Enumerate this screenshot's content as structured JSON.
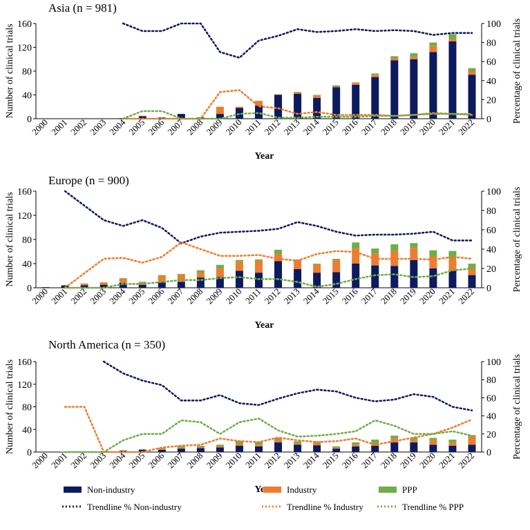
{
  "years": [
    "2000",
    "2001",
    "2002",
    "2003",
    "2004",
    "2005",
    "2006",
    "2007",
    "2008",
    "2009",
    "2010",
    "2011",
    "2012",
    "2013",
    "2014",
    "2015",
    "2016",
    "2017",
    "2018",
    "2019",
    "2020",
    "2021",
    "2022"
  ],
  "colors": {
    "non_industry": "#0d1a5e",
    "industry": "#ed7d31",
    "ppp": "#70ad47"
  },
  "legend": {
    "non_industry": "Non-industry",
    "industry": "Industry",
    "ppp": "PPP",
    "trend_non_industry": "Trendline % Non-industry",
    "trend_industry": "Trendline % Industry",
    "trend_ppp": "Trendline % PPP"
  },
  "chart_data": [
    {
      "type": "bar",
      "stacked": true,
      "title": "Asia (n = 981)",
      "xlabel": "Year",
      "ylabel": "Number of clinical trials",
      "y2label": "Percentage of clinical trials",
      "ylim": [
        0,
        160
      ],
      "yticks": [
        "0",
        "40",
        "80",
        "120",
        "160"
      ],
      "y2lim": [
        0,
        100
      ],
      "y2ticks": [
        "0",
        "20",
        "40",
        "60",
        "80",
        "100"
      ],
      "series": [
        {
          "name": "Non-industry",
          "values": [
            0,
            0,
            0,
            0,
            1,
            4,
            2,
            8,
            2,
            8,
            18,
            22,
            40,
            42,
            35,
            53,
            57,
            70,
            98,
            100,
            112,
            130,
            74
          ]
        },
        {
          "name": "Industry",
          "values": [
            0,
            0,
            0,
            0,
            0,
            1,
            0,
            0,
            0,
            12,
            2,
            8,
            1,
            2,
            4,
            1,
            3,
            4,
            4,
            4,
            10,
            4,
            6
          ]
        },
        {
          "name": "PPP",
          "values": [
            0,
            0,
            0,
            0,
            0,
            0,
            0,
            0,
            0,
            0,
            0,
            0,
            0,
            1,
            1,
            2,
            1,
            2,
            3,
            6,
            6,
            8,
            5
          ]
        }
      ],
      "trendlines": [
        {
          "name": "Trendline % Non-industry",
          "values": [
            null,
            null,
            null,
            null,
            100,
            92,
            92,
            100,
            100,
            70,
            64,
            82,
            87,
            94,
            91,
            92,
            94,
            92,
            93,
            92,
            88,
            90,
            90
          ]
        },
        {
          "name": "Trendline % Industry",
          "values": [
            null,
            null,
            null,
            null,
            0,
            0,
            0,
            0,
            0,
            28,
            30,
            13,
            11,
            5,
            7,
            4,
            4,
            4,
            3,
            4,
            6,
            5,
            4
          ]
        },
        {
          "name": "Trendline % PPP",
          "values": [
            null,
            null,
            null,
            null,
            0,
            8,
            8,
            0,
            0,
            0,
            5,
            6,
            1,
            1,
            2,
            2,
            2,
            3,
            3,
            4,
            5,
            5,
            5
          ]
        }
      ]
    },
    {
      "type": "bar",
      "stacked": true,
      "title": "Europe (n = 900)",
      "xlabel": "Year",
      "ylabel": "Number of clinical trials",
      "y2label": "Percentage of clinical trials",
      "ylim": [
        0,
        160
      ],
      "yticks": [
        "0",
        "40",
        "80",
        "120",
        "160"
      ],
      "y2lim": [
        0,
        100
      ],
      "y2ticks": [
        "0",
        "20",
        "40",
        "60",
        "80",
        "100"
      ],
      "series": [
        {
          "name": "Non-industry",
          "values": [
            1,
            4,
            4,
            5,
            8,
            5,
            10,
            10,
            17,
            18,
            28,
            25,
            44,
            31,
            25,
            26,
            40,
            37,
            36,
            46,
            32,
            28,
            21
          ]
        },
        {
          "name": "Industry",
          "values": [
            0,
            0,
            3,
            4,
            7,
            4,
            10,
            12,
            8,
            14,
            15,
            20,
            12,
            14,
            14,
            20,
            25,
            20,
            25,
            20,
            20,
            20,
            11
          ]
        },
        {
          "name": "PPP",
          "values": [
            0,
            0,
            0,
            0,
            1,
            1,
            1,
            1,
            4,
            6,
            3,
            2,
            7,
            2,
            1,
            2,
            10,
            8,
            11,
            8,
            10,
            13,
            8
          ]
        }
      ],
      "trendlines": [
        {
          "name": "Trendline % Non-industry",
          "values": [
            null,
            100,
            85,
            70,
            64,
            70,
            62,
            46,
            53,
            57,
            58,
            59,
            61,
            68,
            64,
            58,
            54,
            55,
            55,
            56,
            58,
            49,
            49
          ]
        },
        {
          "name": "Trendline % Industry",
          "values": [
            null,
            0,
            15,
            30,
            31,
            26,
            32,
            47,
            40,
            33,
            33,
            34,
            30,
            28,
            35,
            38,
            37,
            30,
            30,
            30,
            29,
            32,
            30
          ]
        },
        {
          "name": "Trendline % PPP",
          "values": [
            null,
            0,
            0,
            0,
            4,
            4,
            6,
            8,
            8,
            10,
            11,
            9,
            9,
            6,
            1,
            4,
            9,
            13,
            14,
            11,
            12,
            18,
            20
          ]
        }
      ]
    },
    {
      "type": "bar",
      "stacked": true,
      "title": "North America (n = 350)",
      "xlabel": "Year",
      "ylabel": "Number of clinical trials",
      "y2label": "Percentage of clinical trials",
      "ylim": [
        0,
        160
      ],
      "yticks": [
        "0",
        "40",
        "80",
        "120",
        "160"
      ],
      "y2lim": [
        0,
        100
      ],
      "y2ticks": [
        "0",
        "20",
        "40",
        "60",
        "80",
        "100"
      ],
      "series": [
        {
          "name": "Non-industry",
          "values": [
            0,
            0,
            0,
            1,
            2,
            4,
            4,
            6,
            7,
            8,
            11,
            10,
            17,
            13,
            12,
            6,
            10,
            11,
            17,
            17,
            13,
            11,
            13
          ]
        },
        {
          "name": "Industry",
          "values": [
            0,
            1,
            0,
            0,
            0,
            0,
            2,
            2,
            2,
            3,
            3,
            3,
            5,
            2,
            4,
            2,
            3,
            3,
            7,
            4,
            8,
            6,
            14
          ]
        },
        {
          "name": "PPP",
          "values": [
            0,
            0,
            0,
            0,
            1,
            1,
            1,
            3,
            2,
            2,
            6,
            5,
            3,
            4,
            3,
            2,
            4,
            8,
            5,
            5,
            4,
            5,
            3
          ]
        }
      ],
      "trendlines": [
        {
          "name": "Trendline % Non-industry",
          "values": [
            null,
            null,
            null,
            100,
            87,
            79,
            74,
            57,
            57,
            63,
            54,
            52,
            59,
            65,
            69,
            67,
            60,
            56,
            58,
            64,
            61,
            50,
            46
          ]
        },
        {
          "name": "Trendline % Industry",
          "values": [
            null,
            50,
            50,
            0,
            0,
            0,
            5,
            7,
            8,
            15,
            12,
            11,
            16,
            13,
            11,
            12,
            15,
            8,
            12,
            16,
            20,
            27,
            36
          ]
        },
        {
          "name": "Trendline % PPP",
          "values": [
            null,
            0,
            0,
            0,
            13,
            20,
            20,
            35,
            33,
            20,
            33,
            37,
            24,
            17,
            18,
            20,
            23,
            35,
            29,
            20,
            20,
            23,
            18
          ]
        }
      ]
    }
  ]
}
